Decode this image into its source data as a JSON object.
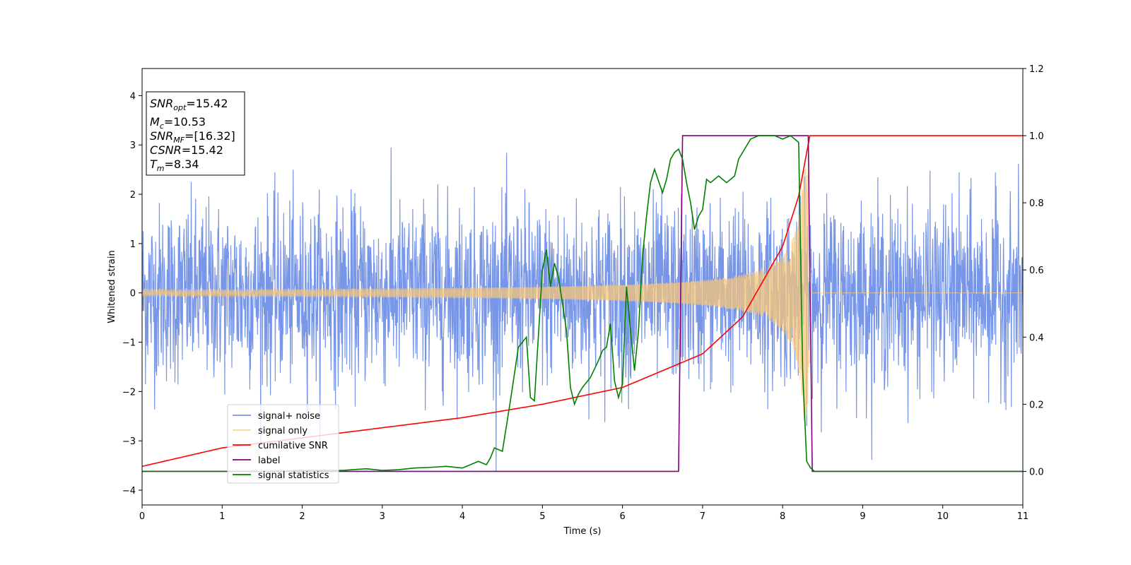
{
  "chart_data": {
    "type": "line",
    "xlabel": "Time (s)",
    "ylabel": "Whitened strain",
    "xlim": [
      0,
      11
    ],
    "ylim": [
      -4.3,
      4.55
    ],
    "y2lim": [
      -0.1,
      1.2
    ],
    "x_ticks": [
      "0",
      "1",
      "2",
      "3",
      "4",
      "5",
      "6",
      "7",
      "8",
      "9",
      "10",
      "11"
    ],
    "y_ticks": [
      "4",
      "3",
      "2",
      "1",
      "0",
      "−1",
      "−2",
      "−3",
      "−4"
    ],
    "y2_ticks": [
      "1.2",
      "1.0",
      "0.8",
      "0.6",
      "0.4",
      "0.2",
      "0.0"
    ],
    "grid": false,
    "legend_position": "lower-left",
    "info_box": {
      "snr_opt": {
        "base": "SNR",
        "sub": "opt",
        "value": "=15.42"
      },
      "mc": {
        "base": "M",
        "sub": "c",
        "value": "=10.53"
      },
      "snr_mf": {
        "base": "SNR",
        "sub": "MF",
        "value": "=[16.32]"
      },
      "csnr": {
        "base": "CSNR",
        "value": "=15.42"
      },
      "tm": {
        "base": "T",
        "sub": "m",
        "value": "=8.34"
      }
    },
    "series": [
      {
        "name": "signal+ noise",
        "color": "#7896e8",
        "axis": "left",
        "description_values": {
          "noise_std": 0.9,
          "t_start": 0,
          "t_end": 11
        }
      },
      {
        "name": "signal only",
        "color": "#f6c57a",
        "axis": "left",
        "chirp": {
          "t_start": 0,
          "t_merge": 8.34,
          "amp_start": 0.06,
          "amp_merge": 2.6
        }
      },
      {
        "name": "cumilative SNR",
        "color": "#ff0000",
        "axis": "right",
        "x": [
          0,
          1,
          2,
          3,
          4,
          5,
          6,
          7,
          7.5,
          8,
          8.2,
          8.3,
          8.34,
          11
        ],
        "y": [
          0.015,
          0.07,
          0.1,
          0.13,
          0.16,
          0.2,
          0.25,
          0.35,
          0.46,
          0.67,
          0.82,
          0.95,
          1.0,
          1.0
        ]
      },
      {
        "name": "label",
        "color": "#800080",
        "axis": "right",
        "x": [
          0,
          6.7,
          6.75,
          8.32,
          8.37,
          11
        ],
        "y": [
          0,
          0,
          1,
          1,
          0,
          0
        ]
      },
      {
        "name": "signal statistics",
        "color": "#008000",
        "axis": "right",
        "x": [
          0,
          0.5,
          1,
          1.5,
          2,
          2.5,
          2.8,
          3,
          3.2,
          3.4,
          3.6,
          3.8,
          4.0,
          4.1,
          4.2,
          4.3,
          4.35,
          4.4,
          4.5,
          4.6,
          4.7,
          4.8,
          4.85,
          4.9,
          5.0,
          5.05,
          5.1,
          5.15,
          5.2,
          5.25,
          5.3,
          5.35,
          5.4,
          5.45,
          5.5,
          5.6,
          5.7,
          5.75,
          5.8,
          5.85,
          5.9,
          5.95,
          6.0,
          6.05,
          6.1,
          6.15,
          6.2,
          6.25,
          6.3,
          6.35,
          6.4,
          6.5,
          6.55,
          6.6,
          6.65,
          6.7,
          6.75,
          6.8,
          6.85,
          6.9,
          6.95,
          7.0,
          7.05,
          7.1,
          7.15,
          7.2,
          7.3,
          7.4,
          7.45,
          7.5,
          7.6,
          7.7,
          7.8,
          7.9,
          8.0,
          8.1,
          8.2,
          8.25,
          8.3,
          8.35,
          8.4,
          8.5,
          11
        ],
        "y": [
          0.0,
          0.0,
          0.0,
          0.0,
          0.003,
          0.003,
          0.008,
          0.003,
          0.005,
          0.01,
          0.012,
          0.015,
          0.01,
          0.02,
          0.03,
          0.02,
          0.04,
          0.07,
          0.06,
          0.21,
          0.37,
          0.4,
          0.22,
          0.21,
          0.6,
          0.66,
          0.55,
          0.62,
          0.58,
          0.5,
          0.42,
          0.25,
          0.2,
          0.23,
          0.25,
          0.28,
          0.33,
          0.36,
          0.37,
          0.44,
          0.27,
          0.22,
          0.26,
          0.55,
          0.42,
          0.3,
          0.42,
          0.64,
          0.76,
          0.86,
          0.9,
          0.83,
          0.87,
          0.93,
          0.95,
          0.96,
          0.93,
          0.86,
          0.8,
          0.72,
          0.76,
          0.78,
          0.87,
          0.86,
          0.87,
          0.88,
          0.86,
          0.88,
          0.93,
          0.95,
          0.99,
          1.0,
          1.0,
          1.0,
          0.99,
          1.0,
          0.98,
          0.3,
          0.03,
          0.01,
          0.0,
          0.0,
          0.0
        ]
      }
    ]
  }
}
